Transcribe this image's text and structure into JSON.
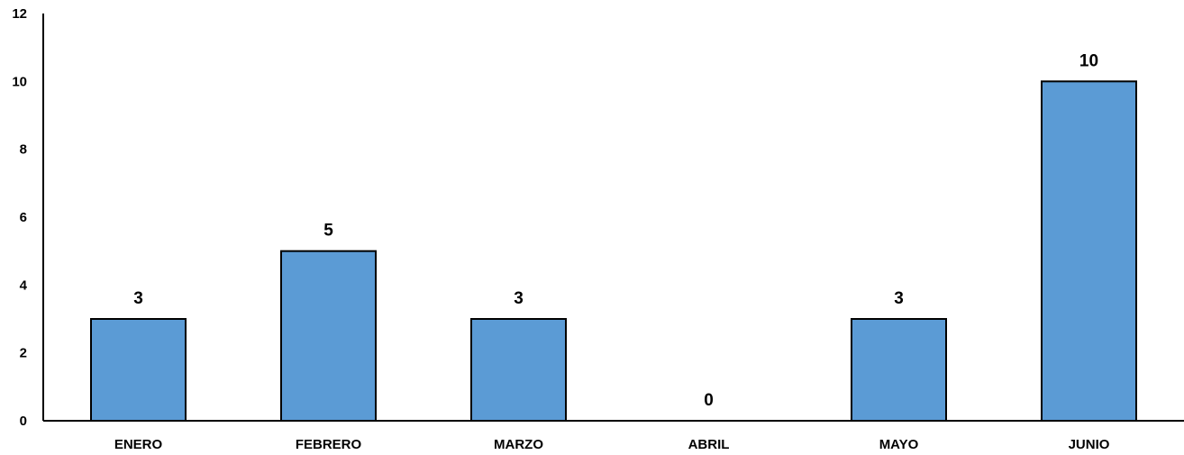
{
  "chart_data": {
    "type": "bar",
    "title": "",
    "xlabel": "",
    "ylabel": "",
    "categories": [
      "ENERO",
      "FEBRERO",
      "MARZO",
      "ABRIL",
      "MAYO",
      "JUNIO"
    ],
    "values": [
      3,
      5,
      3,
      0,
      3,
      10
    ],
    "data_labels": [
      "3",
      "5",
      "3",
      "0",
      "3",
      "10"
    ],
    "ylim": [
      0,
      12
    ],
    "yticks": [
      0,
      2,
      4,
      6,
      8,
      10,
      12
    ],
    "ytick_labels": [
      "0",
      "2",
      "4",
      "6",
      "8",
      "10",
      "12"
    ],
    "grid": false,
    "legend": "none",
    "colors": {
      "bar_fill": "#5B9BD5",
      "bar_stroke": "#000000",
      "axis": "#000000"
    }
  }
}
